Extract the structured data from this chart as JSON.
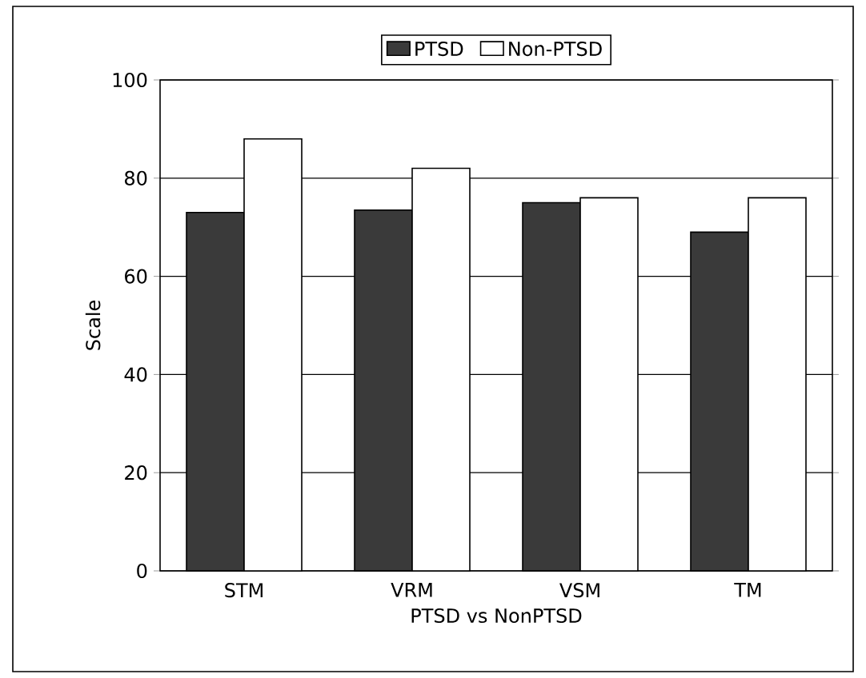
{
  "chart_data": {
    "type": "bar",
    "xlabel": "PTSD vs NonPTSD",
    "ylabel": "Scale",
    "categories": [
      "STM",
      "VRM",
      "VSM",
      "TM"
    ],
    "series": [
      {
        "name": "PTSD",
        "color": "#3a3a3a",
        "values": [
          73,
          73.5,
          75,
          69
        ]
      },
      {
        "name": "Non-PTSD",
        "color": "#ffffff",
        "values": [
          88,
          82,
          76,
          76
        ]
      }
    ],
    "ylim": [
      0,
      100
    ],
    "yticks": [
      0,
      20,
      40,
      60,
      80,
      100
    ],
    "grid": "y",
    "legend": "top"
  }
}
